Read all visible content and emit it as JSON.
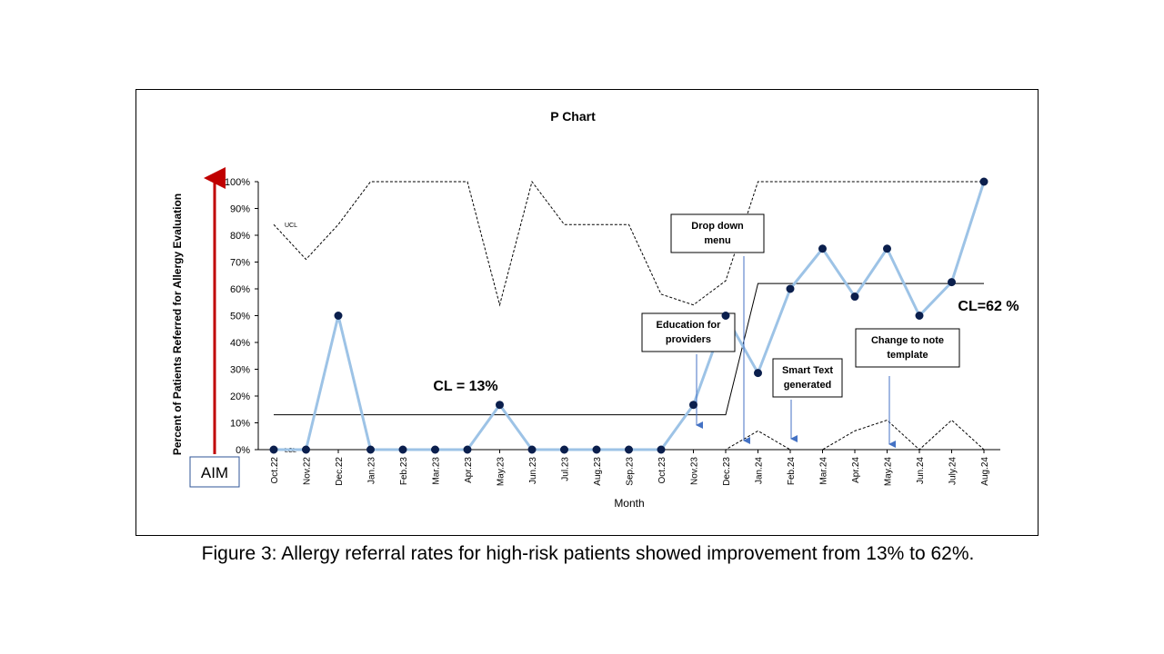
{
  "caption": "Figure 3: Allergy referral rates for high-risk patients showed improvement from 13% to 62%.",
  "chart_data": {
    "type": "line",
    "title": "P Chart",
    "xlabel": "Month",
    "ylabel": "Percent of Patients Referred for Allergy Evaluation",
    "ylim": [
      0,
      100
    ],
    "yticks": [
      "0%",
      "10%",
      "20%",
      "30%",
      "40%",
      "50%",
      "60%",
      "70%",
      "80%",
      "90%",
      "100%"
    ],
    "categories": [
      "Oct.22",
      "Nov.22",
      "Dec.22",
      "Jan.23",
      "Feb.23",
      "Mar.23",
      "Apr.23",
      "May.23",
      "Jun.23",
      "Jul.23",
      "Aug.23",
      "Sep.23",
      "Oct.23",
      "Nov.23",
      "Dec.23",
      "Jan.24",
      "Feb.24",
      "Mar.24",
      "Apr.24",
      "May.24",
      "Jun.24",
      "July.24",
      "Aug.24"
    ],
    "series": [
      {
        "key": "p",
        "color": "#9dc3e6",
        "values": [
          0,
          0,
          50,
          0,
          0,
          0,
          0,
          16.7,
          0,
          0,
          0,
          0,
          0,
          16.7,
          50,
          28.6,
          60,
          75,
          57.1,
          75,
          50,
          62.5,
          100
        ]
      },
      {
        "key": "ucl",
        "name": "UCL",
        "values": [
          84,
          71,
          84,
          100,
          100,
          100,
          100,
          54,
          100,
          84,
          84,
          84,
          58,
          54,
          63,
          100,
          100,
          100,
          100,
          100,
          100,
          100,
          100
        ]
      },
      {
        "key": "lcl",
        "name": "LCL",
        "values": [
          0,
          0,
          0,
          0,
          0,
          0,
          0,
          0,
          0,
          0,
          0,
          0,
          0,
          0,
          0,
          7,
          0,
          0,
          7,
          11,
          0,
          11,
          0
        ]
      }
    ],
    "center_lines": [
      {
        "label": "CL = 13%",
        "value": 13
      },
      {
        "label": "CL=62 %",
        "value": 62
      }
    ],
    "aim_label": "AIM",
    "annotations": [
      {
        "text": [
          "Drop down",
          "menu"
        ],
        "at": "Jan.24"
      },
      {
        "text": [
          "Education  for",
          "providers"
        ],
        "at": "Nov.23"
      },
      {
        "text": [
          "Smart Text",
          "generated"
        ],
        "at": "Feb.24"
      },
      {
        "text": [
          "Change to note",
          "template"
        ],
        "at": "May.24"
      }
    ]
  }
}
